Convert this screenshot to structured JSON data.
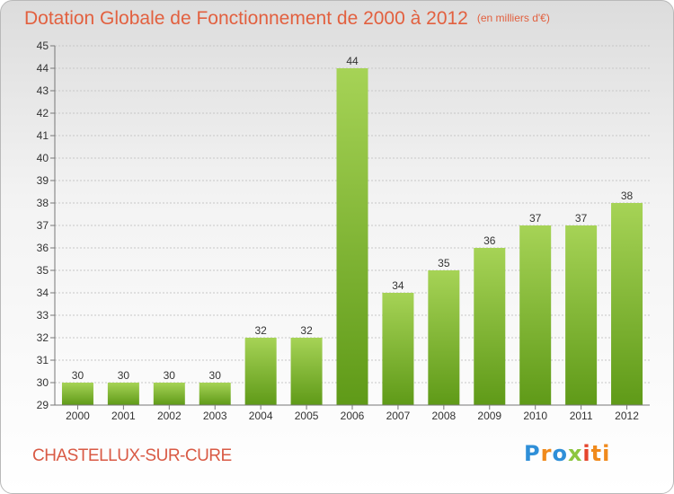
{
  "title": "Dotation Globale de Fonctionnement de 2000 à 2012",
  "unit_note": "(en milliers d'€)",
  "commune": "CHASTELLUX-SUR-CURE",
  "logo": [
    "P",
    "r",
    "o",
    "x",
    "i",
    "ti"
  ],
  "colors": {
    "title": "#e2603f",
    "bar_top": "#a6d356",
    "bar_bottom": "#5f9a18",
    "grid": "#c7c7c7"
  },
  "chart_data": {
    "type": "bar",
    "title": "Dotation Globale de Fonctionnement de 2000 à 2012",
    "subtitle": "(en milliers d'€)",
    "categories": [
      "2000",
      "2001",
      "2002",
      "2003",
      "2004",
      "2005",
      "2006",
      "2007",
      "2008",
      "2009",
      "2010",
      "2011",
      "2012"
    ],
    "values": [
      30,
      30,
      30,
      30,
      32,
      32,
      44,
      34,
      35,
      36,
      37,
      37,
      38
    ],
    "ylim": [
      29,
      45
    ],
    "yticks": [
      29,
      30,
      31,
      32,
      33,
      34,
      35,
      36,
      37,
      38,
      39,
      40,
      41,
      42,
      43,
      44,
      45
    ],
    "grid": true,
    "data_labels": true,
    "legend": "none"
  }
}
